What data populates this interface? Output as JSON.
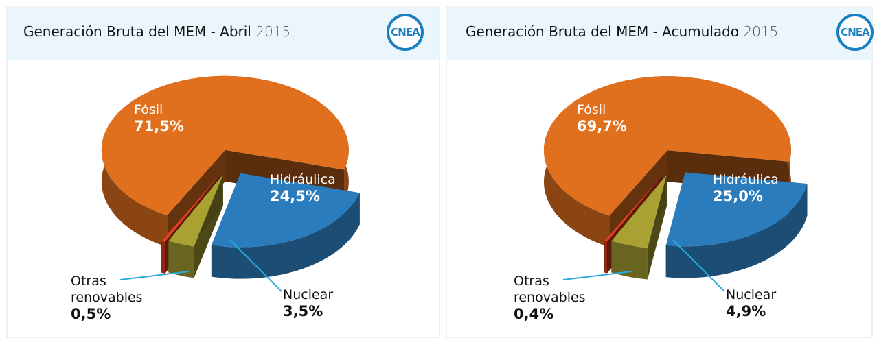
{
  "chart_data": [
    {
      "type": "pie",
      "title": "Generación Bruta del MEM - Abril",
      "period": "2015",
      "logo": "CNEA",
      "categories": [
        "Fósil",
        "Hidráulica",
        "Nuclear",
        "Otras renovables"
      ],
      "values": [
        71.5,
        24.5,
        3.5,
        0.5
      ],
      "value_labels": [
        "71,5%",
        "24,5%",
        "3,5%",
        "0,5%"
      ],
      "colors": [
        "#e0701e",
        "#2b7cbc",
        "#a9a232",
        "#e2401e"
      ]
    },
    {
      "type": "pie",
      "title": "Generación Bruta del MEM - Acumulado",
      "period": "2015",
      "logo": "CNEA",
      "categories": [
        "Fósil",
        "Hidráulica",
        "Nuclear",
        "Otras renovables"
      ],
      "values": [
        69.7,
        25.0,
        4.9,
        0.4
      ],
      "value_labels": [
        "69,7%",
        "25,0%",
        "4,9%",
        "0,4%"
      ],
      "colors": [
        "#e0701e",
        "#2b7cbc",
        "#a9a232",
        "#e2401e"
      ]
    }
  ]
}
